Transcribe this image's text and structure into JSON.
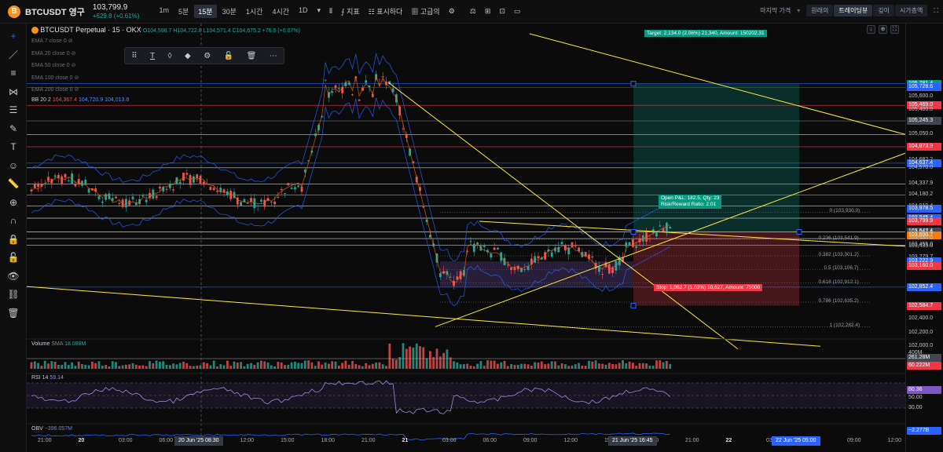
{
  "header": {
    "symbol": "BTCUSDT 영구",
    "coin_letter": "B",
    "price": "103,799.9",
    "change": "+629.8 (+0.61%)",
    "timeframes": [
      "1m",
      "5분",
      "15분",
      "30분",
      "1시간",
      "4시간",
      "1D"
    ],
    "active_timeframe": "15분",
    "tools": [
      "지표",
      "표시하다",
      "고급의"
    ],
    "right": {
      "last_price": "마지막 가격",
      "modes": [
        "원래의",
        "트레이딩뷰",
        "깊이",
        "시가총액"
      ],
      "active_mode": "트레이딩뷰"
    }
  },
  "chart_controls": [
    "↓",
    "⊕",
    "⛶",
    "⤢"
  ],
  "legend": {
    "title": "BTCUSDT Perpetual · 15 · OKX",
    "ohlc": "O104,598.7 H104,722.8 L104,571.4 C104,675.2 +76.5 (+0.07%)",
    "ema": [
      "EMA 7 close 0",
      "EMA 20 close 0",
      "EMA 50 close 0",
      "EMA 100 close 0",
      "EMA 200 close 0"
    ],
    "bb_label": "BB 20 2",
    "bb_values": [
      "104,367.4",
      "104,720.9",
      "104,013.8"
    ]
  },
  "drawing_toolbar": [
    "⠿",
    "T",
    "◊",
    "◆",
    "⚙",
    "🔓",
    "🗑",
    "⋯"
  ],
  "position": {
    "target": "Target: 2,134.0 (2.06%) 21,340, Amount: 150202.31",
    "stop": "Stop: 1,062.7 (1.03%) 10,627, Amount: 75000",
    "pnl": "Open P&L: 182.5, Qty: 23",
    "rr": "Risk/Reward Ratio: 2.01"
  },
  "fib_levels": [
    {
      "label": "0 (103,930.9)"
    },
    {
      "label": "0.236 (103,541.9)"
    },
    {
      "label": "0.382 (103,301.2)"
    },
    {
      "label": "0.5 (103,106.7)"
    },
    {
      "label": "0.618 (102,912.1)"
    },
    {
      "label": "0.786 (102,635.2)"
    },
    {
      "label": "1 (102,282.4)"
    }
  ],
  "price_labels": [
    {
      "v": "105,781.4",
      "bg": "#089981"
    },
    {
      "v": "105,728.6",
      "bg": "#2962ff"
    },
    {
      "v": "105,600.0",
      "bg": ""
    },
    {
      "v": "105,469.0",
      "bg": "#f23645"
    },
    {
      "v": "105,400.0",
      "bg": ""
    },
    {
      "v": "105,245.3",
      "bg": "#434651"
    },
    {
      "v": "105,050.0",
      "bg": ""
    },
    {
      "v": "104,873.9",
      "bg": "#f23645"
    },
    {
      "v": "104,682.2",
      "bg": ""
    },
    {
      "v": "104,637.4",
      "bg": "#2962ff"
    },
    {
      "v": "104,570.0",
      "bg": ""
    },
    {
      "v": "104,337.9",
      "bg": ""
    },
    {
      "v": "104,180.2",
      "bg": ""
    },
    {
      "v": "104,019.4",
      "bg": ""
    },
    {
      "v": "103,978.5",
      "bg": "#2962ff"
    },
    {
      "v": "103,845.4",
      "bg": "#2962ff"
    },
    {
      "v": "103,823.0",
      "bg": ""
    },
    {
      "v": "103,799.9",
      "bg": "#f23645"
    },
    {
      "v": "103,647.4",
      "bg": "#434651"
    },
    {
      "v": "103,642.1",
      "bg": ""
    },
    {
      "v": "103,600.7",
      "bg": "#f57c00"
    },
    {
      "v": "103,550.0",
      "bg": ""
    },
    {
      "v": "103,455.0",
      "bg": ""
    },
    {
      "v": "103,435.0",
      "bg": ""
    },
    {
      "v": "103,279.7",
      "bg": ""
    },
    {
      "v": "103,222.9",
      "bg": "#2962ff"
    },
    {
      "v": "103,160.0",
      "bg": "#f23645"
    },
    {
      "v": "102,852.4",
      "bg": "#2962ff"
    },
    {
      "v": "102,584.7",
      "bg": "#f23645"
    },
    {
      "v": "102,400.0",
      "bg": ""
    },
    {
      "v": "102,200.0",
      "bg": ""
    },
    {
      "v": "102,000.0",
      "bg": ""
    }
  ],
  "volume": {
    "label": "Volume",
    "sma": "SMA",
    "value": "18.088M",
    "axis": [
      "400M",
      "261.28M",
      "60.222M"
    ]
  },
  "rsi": {
    "label": "RSI",
    "len": "14",
    "value": "59.14",
    "axis": [
      "60.36",
      "50.00",
      "30.00"
    ]
  },
  "obv": {
    "label": "OBV",
    "value": "−396.057M",
    "axis": [
      "−2.277B"
    ]
  },
  "time_axis": [
    "21:00",
    "20",
    "03:00",
    "06:00",
    "09:00",
    "12:00",
    "15:00",
    "18:00",
    "21:00",
    "21",
    "03:00",
    "06:00",
    "09:00",
    "12:00",
    "15:00",
    "18:00",
    "21:00",
    "22",
    "03:00",
    "06:00",
    "09:00",
    "12:00"
  ],
  "time_highlights": [
    "20 Jun '25  08:30",
    "21 Jun '25  16:45",
    "22 Jun '25  05:00"
  ],
  "left_tools": [
    "+",
    "／",
    "≡",
    "⋈",
    "☰",
    "✎",
    "T",
    "☺",
    "📏",
    "⊕",
    "∩",
    "🔒",
    "🔓",
    "👁",
    "⛓",
    "🗑"
  ]
}
